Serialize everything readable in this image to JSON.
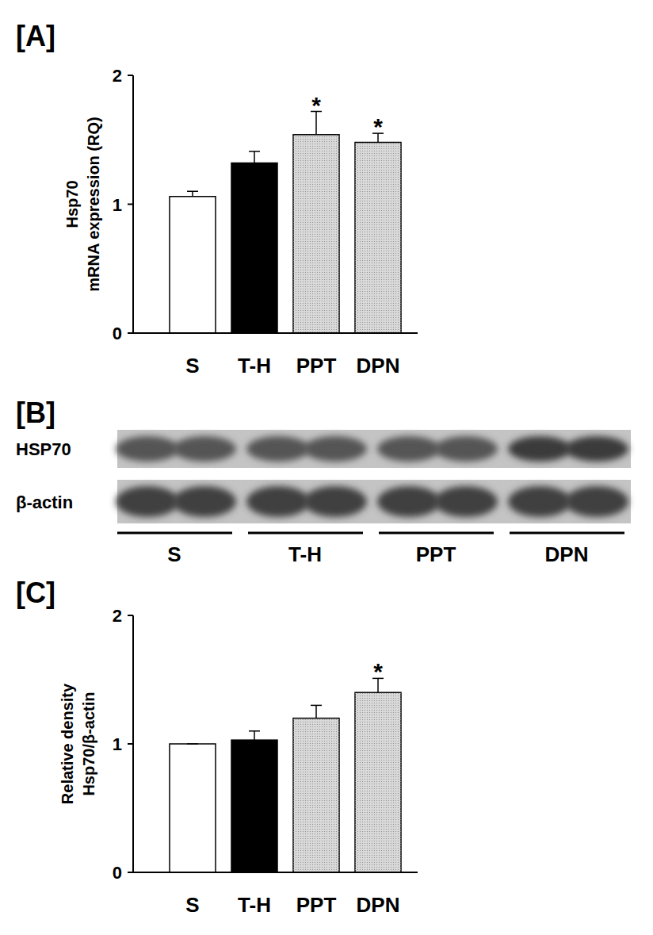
{
  "chart_data": [
    {
      "type": "bar",
      "title": "[A]",
      "y_label": [
        "Hsp70",
        "mRNA expression (RQ)"
      ],
      "categories": [
        "S",
        "T-H",
        "PPT",
        "DPN"
      ],
      "values": [
        1.06,
        1.32,
        1.54,
        1.48
      ],
      "errors": [
        0.04,
        0.09,
        0.18,
        0.07
      ],
      "colors": [
        "#ffffff",
        "#000000",
        "#d9d9d9",
        "#d9d9d9"
      ],
      "annotations": [
        null,
        null,
        "*",
        "*"
      ],
      "ylim": [
        0,
        2
      ],
      "yticks": [
        0,
        1,
        2
      ],
      "grid": false
    },
    {
      "type": "bar",
      "title": "[C]",
      "y_label": [
        "Relative density",
        "Hsp70/β-actin"
      ],
      "categories": [
        "S",
        "T-H",
        "PPT",
        "DPN"
      ],
      "values": [
        1.0,
        1.03,
        1.2,
        1.4
      ],
      "errors": [
        0,
        0.07,
        0.1,
        0.11
      ],
      "colors": [
        "#ffffff",
        "#000000",
        "#d9d9d9",
        "#d9d9d9"
      ],
      "annotations": [
        null,
        null,
        null,
        "*"
      ],
      "ylim": [
        0,
        2
      ],
      "yticks": [
        0,
        1,
        2
      ],
      "grid": false
    }
  ],
  "blot": {
    "title": "[B]",
    "rows": [
      "HSP70",
      "β-actin"
    ],
    "groups": [
      "S",
      "T-H",
      "PPT",
      "DPN"
    ]
  }
}
